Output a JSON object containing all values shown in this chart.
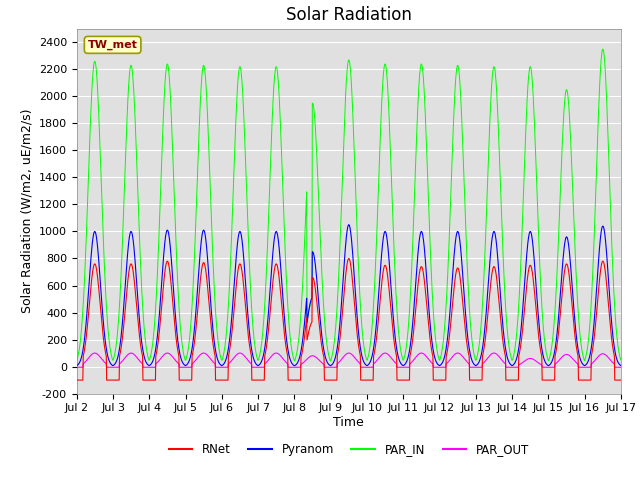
{
  "title": "Solar Radiation",
  "ylabel": "Solar Radiation (W/m2, uE/m2/s)",
  "xlabel": "Time",
  "station_label": "TW_met",
  "ylim": [
    -200,
    2500
  ],
  "yticks": [
    -200,
    0,
    200,
    400,
    600,
    800,
    1000,
    1200,
    1400,
    1600,
    1800,
    2000,
    2200,
    2400
  ],
  "start_day": 2,
  "end_day": 17,
  "n_days": 15,
  "colors": {
    "RNet": "#ff0000",
    "Pyranom": "#0000ff",
    "PAR_IN": "#00ff00",
    "PAR_OUT": "#ff00ff"
  },
  "legend_entries": [
    "RNet",
    "Pyranom",
    "PAR_IN",
    "PAR_OUT"
  ],
  "background_color": "#e0e0e0",
  "grid_color": "#ffffff",
  "title_fontsize": 12,
  "label_fontsize": 9,
  "tick_fontsize": 8,
  "par_in_peaks": [
    2260,
    2230,
    2240,
    2230,
    2220,
    2220,
    1950,
    2270,
    2240,
    2240,
    2230,
    2220,
    2220,
    2050,
    2350
  ],
  "par_in_cloud": [
    false,
    false,
    false,
    false,
    false,
    false,
    true,
    false,
    false,
    false,
    false,
    false,
    false,
    false,
    false
  ],
  "pyranom_peaks": [
    1000,
    1000,
    1010,
    1010,
    1000,
    1000,
    850,
    1050,
    1000,
    1000,
    1000,
    1000,
    1000,
    960,
    1040
  ],
  "rnet_peaks": [
    760,
    760,
    780,
    770,
    760,
    760,
    660,
    800,
    750,
    740,
    730,
    740,
    750,
    760,
    780
  ],
  "par_out_peaks": [
    100,
    100,
    100,
    100,
    100,
    100,
    80,
    100,
    100,
    100,
    100,
    100,
    60,
    90,
    95
  ],
  "sigma_par_in": 0.18,
  "sigma_pyranom": 0.16,
  "sigma_rnet": 0.15,
  "sigma_par_out": 0.18,
  "rnet_night": -100,
  "par_out_night": -5
}
